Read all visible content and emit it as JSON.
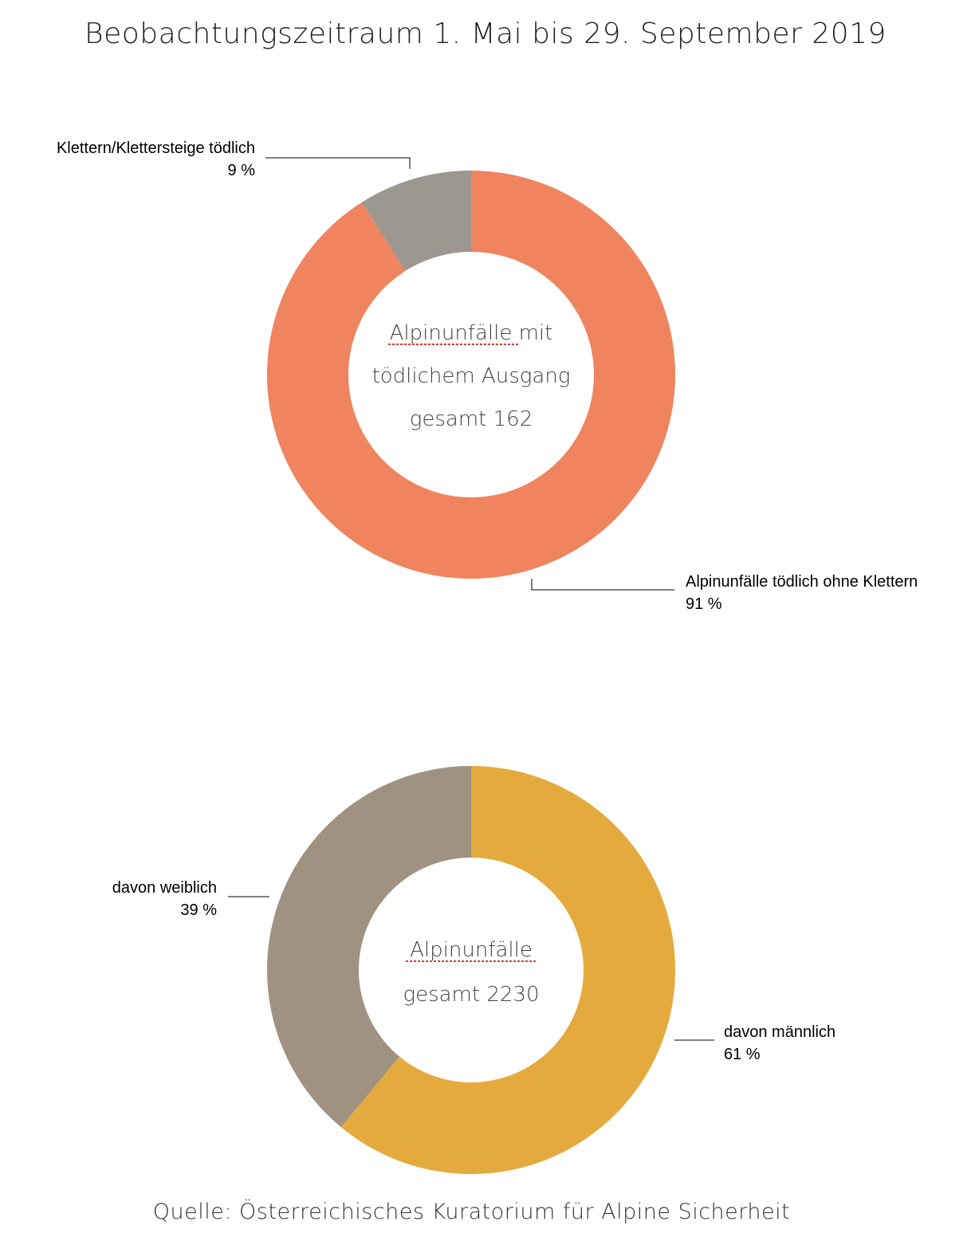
{
  "title": "Beobachtungszeitraum 1. Mai bis 29. September 2019",
  "source": "Quelle: Österreichisches Kuratorium für Alpine Sicherheit",
  "chart_data": [
    {
      "type": "pie",
      "donut": true,
      "center_lines": [
        "Alpinunfälle mit",
        "tödlichem Ausgang",
        "gesamt 162"
      ],
      "slices": [
        {
          "label": "Alpinunfälle tödlich ohne Klettern",
          "value": 91,
          "value_label": "91 %",
          "color": "#ef845f"
        },
        {
          "label": "Klettern/Klettersteige tödlich",
          "value": 9,
          "value_label": "9 %",
          "color": "#9c9791"
        }
      ]
    },
    {
      "type": "pie",
      "donut": true,
      "center_lines": [
        "Alpinunfälle",
        "gesamt 2230"
      ],
      "slices": [
        {
          "label": "davon männlich",
          "value": 61,
          "value_label": "61 %",
          "color": "#e5aa3d"
        },
        {
          "label": "davon weiblich",
          "value": 39,
          "value_label": "39 %",
          "color": "#a09281"
        }
      ]
    }
  ]
}
